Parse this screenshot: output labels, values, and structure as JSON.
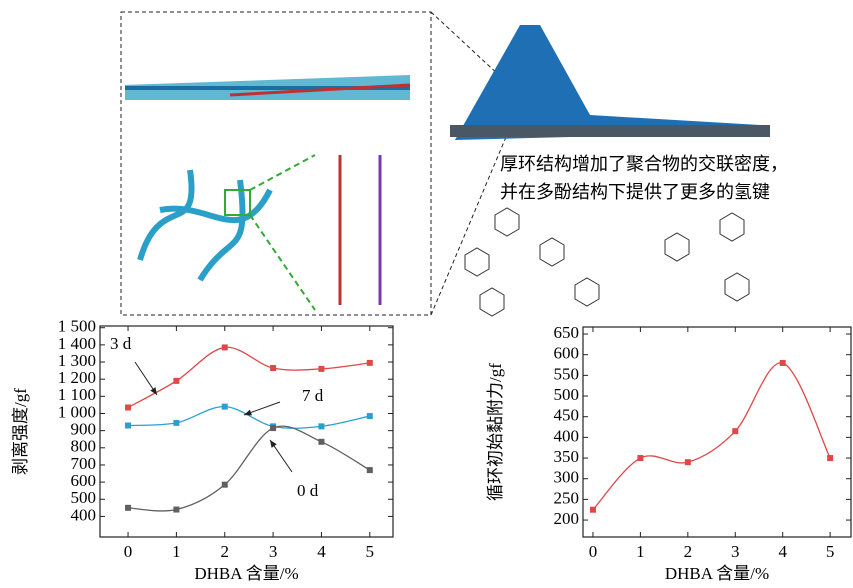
{
  "illustration": {
    "caption_lines": [
      "厚环结构增加了聚合物的交联密度，",
      "并在多酚结构下提供了更多的氢键"
    ]
  },
  "chart_data": [
    {
      "type": "line",
      "y_label": "剥离强度/gf",
      "x_label": "DHBA 含量/%",
      "x": [
        0,
        1,
        2,
        3,
        4,
        5
      ],
      "xlim": [
        -0.58,
        5.48
      ],
      "xticks": [
        0,
        1,
        2,
        3,
        4,
        5
      ],
      "ylim": [
        280,
        1510
      ],
      "yticks": [
        400,
        500,
        600,
        700,
        800,
        900,
        {
          "value": 1000,
          "label": "1 000"
        },
        {
          "value": 1100,
          "label": "1 100"
        },
        {
          "value": 1200,
          "label": "1 200"
        },
        {
          "value": 1300,
          "label": "1 300"
        },
        {
          "value": 1400,
          "label": "1 400"
        },
        {
          "value": 1500,
          "label": "1 500"
        }
      ],
      "series": [
        {
          "name": "3 d",
          "color": "#e04848",
          "values": [
            1035,
            1190,
            1385,
            1265,
            1260,
            1295
          ]
        },
        {
          "name": "7 d",
          "color": "#2aa0d0",
          "values": [
            930,
            945,
            1040,
            925,
            925,
            985
          ]
        },
        {
          "name": "0 d",
          "color": "#606060",
          "values": [
            450,
            440,
            585,
            915,
            835,
            670
          ]
        }
      ]
    },
    {
      "type": "line",
      "y_label": "循环初始黏附力/gf",
      "x_label": "DHBA 含量/%",
      "x": [
        0,
        1,
        2,
        3,
        4,
        5
      ],
      "xlim": [
        -0.21,
        5.44
      ],
      "xticks": [
        0,
        1,
        2,
        3,
        4,
        5
      ],
      "ylim": [
        159,
        667
      ],
      "yticks": [
        200,
        250,
        300,
        350,
        400,
        450,
        500,
        550,
        600,
        650
      ],
      "series": [
        {
          "name": null,
          "color": "#e04848",
          "values": [
            225,
            350,
            340,
            415,
            580,
            350
          ]
        }
      ]
    }
  ]
}
